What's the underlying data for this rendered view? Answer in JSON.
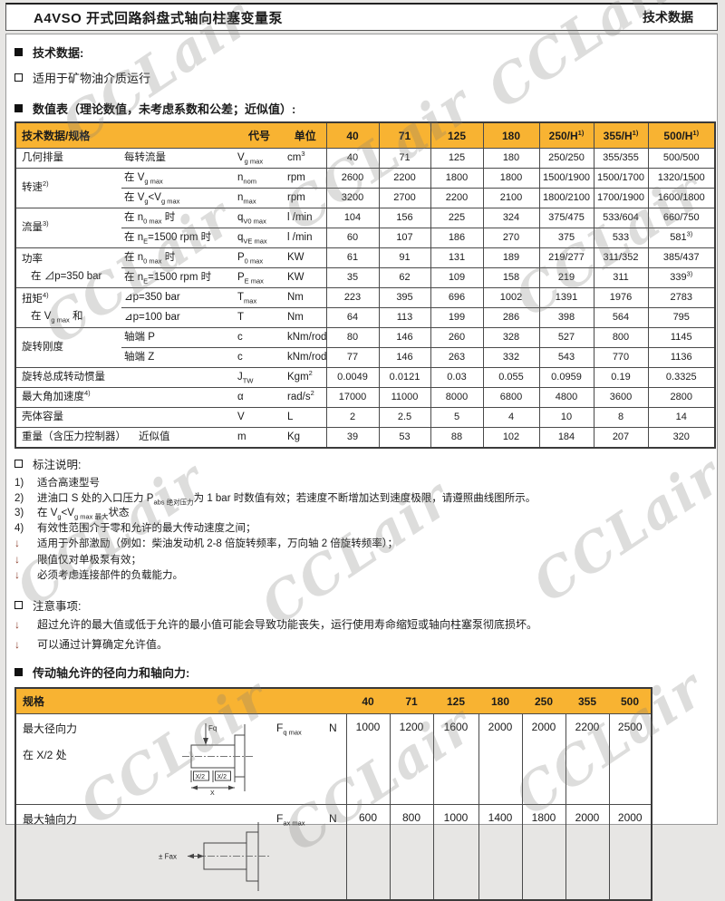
{
  "header": {
    "title": "A4VSO 开式回路斜盘式轴向柱塞变量泵",
    "right": "技术数据"
  },
  "intro": {
    "tech_data_heading": "技术数据:",
    "medium_line": "适用于矿物油介质运行",
    "table_caption": "数值表（理论数值，未考虑系数和公差；近似值）:"
  },
  "main_table": {
    "header": {
      "spec_label": "技术数据/规格",
      "code_label": "代号",
      "unit_label": "单位",
      "sizes": [
        "40",
        "71",
        "125",
        "180",
        "250/H^1)^",
        "355/H^1)^",
        "500/H^1)^"
      ]
    },
    "rows": [
      {
        "group": [
          "几何排量"
        ],
        "rowspan": 1,
        "sub": "每转流量",
        "code": "V~g max~",
        "unit": "cm^3^",
        "values": [
          "40",
          "71",
          "125",
          "180",
          "250/250",
          "355/355",
          "500/500"
        ]
      },
      {
        "group": [
          "转速^2)^"
        ],
        "rowspan": 2,
        "sub": "在 V~g max~",
        "code": "n~nom~",
        "unit": "rpm",
        "values": [
          "2600",
          "2200",
          "1800",
          "1800",
          "1500/1900",
          "1500/1700",
          "1320/1500"
        ]
      },
      {
        "cont": true,
        "sub": "在 V~g~<V~g max~",
        "code": "n~max~",
        "unit": "rpm",
        "values": [
          "3200",
          "2700",
          "2200",
          "2100",
          "1800/2100",
          "1700/1900",
          "1600/1800"
        ]
      },
      {
        "group": [
          "流量^3)^"
        ],
        "rowspan": 2,
        "sub": "在 n~0 max~ 时",
        "code": "q~V0 max~",
        "unit": "l /min",
        "values": [
          "104",
          "156",
          "225",
          "324",
          "375/475",
          "533/604",
          "660/750"
        ]
      },
      {
        "cont": true,
        "sub": "在 n~E~=1500 rpm 时",
        "code": "q~VE max~",
        "unit": "l /min",
        "values": [
          "60",
          "107",
          "186",
          "270",
          "375",
          "533",
          "581^3)^"
        ]
      },
      {
        "group": [
          "功率",
          "在 ⊿p=350 bar"
        ],
        "rowspan": 2,
        "sub": "在 n~0 max~ 时",
        "code": "P~0 max~",
        "unit": "KW",
        "values": [
          "61",
          "91",
          "131",
          "189",
          "219/277",
          "311/352",
          "385/437"
        ]
      },
      {
        "cont": true,
        "sub": "在 n~E~=1500 rpm 时",
        "code": "P~E max~",
        "unit": "KW",
        "values": [
          "35",
          "62",
          "109",
          "158",
          "219",
          "311",
          "339^3)^"
        ]
      },
      {
        "group": [
          "扭矩^4)^",
          "在 V~g max~ 和"
        ],
        "rowspan": 2,
        "sub": "⊿p=350 bar",
        "code": "T~max~",
        "unit": "Nm",
        "values": [
          "223",
          "395",
          "696",
          "1002",
          "1391",
          "1976",
          "2783"
        ]
      },
      {
        "cont": true,
        "sub": "⊿p=100 bar",
        "code": "T",
        "unit": "Nm",
        "values": [
          "64",
          "113",
          "199",
          "286",
          "398",
          "564",
          "795"
        ]
      },
      {
        "group": [
          "旋转刚度"
        ],
        "rowspan": 2,
        "sub": "轴端 P",
        "code": "c",
        "unit": "kNm/rod",
        "values": [
          "80",
          "146",
          "260",
          "328",
          "527",
          "800",
          "1145"
        ]
      },
      {
        "cont": true,
        "sub": "轴端 Z",
        "code": "c",
        "unit": "kNm/rod",
        "values": [
          "77",
          "146",
          "263",
          "332",
          "543",
          "770",
          "1136"
        ]
      },
      {
        "group": [
          "旋转总成转动惯量"
        ],
        "rowspan": 1,
        "span2": true,
        "code": "J~TW~",
        "unit": "Kgm^2^",
        "values": [
          "0.0049",
          "0.0121",
          "0.03",
          "0.055",
          "0.0959",
          "0.19",
          "0.3325"
        ]
      },
      {
        "group": [
          "最大角加速度^4)^"
        ],
        "rowspan": 1,
        "span2": true,
        "code": "α",
        "unit": "rad/s^2^",
        "values": [
          "17000",
          "11000",
          "8000",
          "6800",
          "4800",
          "3600",
          "2800"
        ]
      },
      {
        "group": [
          "壳体容量"
        ],
        "rowspan": 1,
        "span2": true,
        "code": "V",
        "unit": "L",
        "values": [
          "2",
          "2.5",
          "5",
          "4",
          "10",
          "8",
          "14"
        ]
      },
      {
        "group": [
          "重量（含压力控制器）"
        ],
        "rowspan": 1,
        "span2": true,
        "sub_inline": "近似值",
        "code": "m",
        "unit": "Kg",
        "values": [
          "39",
          "53",
          "88",
          "102",
          "184",
          "207",
          "320"
        ]
      }
    ]
  },
  "notes": {
    "title": "标注说明:",
    "items": [
      {
        "bullet": "1)",
        "text": "适合高速型号"
      },
      {
        "bullet": "2)",
        "text": "进油口 S 处的入口压力 P~abs 绝对压力~为 1 bar 时数值有效；若速度不断增加达到速度极限，请遵照曲线图所示。"
      },
      {
        "bullet": "3)",
        "text": "在 V~g~<V~g max 最大~状态"
      },
      {
        "bullet": "4)",
        "text": "有效性范围介于零和允许的最大传动速度之间；"
      },
      {
        "bullet": "arrow",
        "text": "适用于外部激励（例如：柴油发动机 2-8 倍旋转频率，万向轴 2 倍旋转频率）；"
      },
      {
        "bullet": "arrow",
        "text": "限值仅对单极泵有效；"
      },
      {
        "bullet": "arrow",
        "text": "必须考虑连接部件的负载能力。"
      }
    ]
  },
  "notice": {
    "title": "注意事项:",
    "items": [
      {
        "bullet": "arrow",
        "text": "超过允许的最大值或低于允许的最小值可能会导致功能丧失，运行使用寿命缩短或轴向柱塞泵彻底损坏。"
      },
      {
        "bullet": "arrow",
        "text": "可以通过计算确定允许值。"
      }
    ]
  },
  "forces": {
    "heading": "传动轴允许的径向力和轴向力:",
    "table": {
      "header_label": "规格",
      "sizes": [
        "40",
        "71",
        "125",
        "180",
        "250",
        "355",
        "500"
      ],
      "rows": [
        {
          "labels": [
            "最大径向力",
            "在 X/2 处"
          ],
          "code": "F~q max~",
          "unit": "N",
          "values": [
            "1000",
            "1200",
            "1600",
            "2000",
            "2000",
            "2200",
            "2500"
          ]
        },
        {
          "labels": [
            "最大轴向力"
          ],
          "code": "F~ax max~",
          "unit": "N",
          "values": [
            "600",
            "800",
            "1000",
            "1400",
            "1800",
            "2000",
            "2000"
          ]
        }
      ]
    },
    "diagram_labels": {
      "fq": "Fq",
      "x2": "X/2",
      "x": "X",
      "fax": "± Fax"
    }
  },
  "watermark": {
    "text": "CCLair"
  },
  "colors": {
    "accent_yellow": "#F8B332",
    "bullet_red": "#8a3a28"
  }
}
